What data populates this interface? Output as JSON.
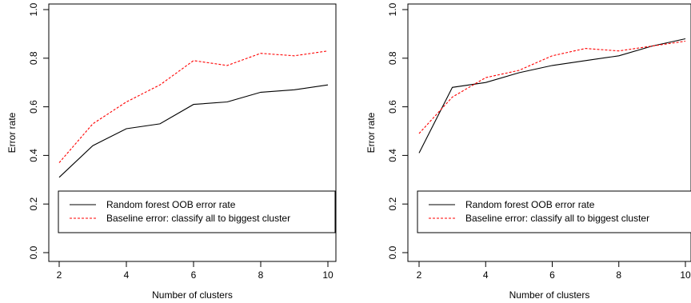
{
  "colors": {
    "oob_line": "#000000",
    "baseline_line": "#ff0000",
    "frame": "#000000",
    "background": "#ffffff"
  },
  "chart_data": [
    {
      "type": "line",
      "xlabel": "Number of clusters",
      "ylabel": "Error rate",
      "xlim": [
        2,
        10
      ],
      "ylim": [
        0,
        1
      ],
      "xticks": [
        "2",
        "4",
        "6",
        "8",
        "10"
      ],
      "yticks": [
        "0.0",
        "0.2",
        "0.4",
        "0.6",
        "0.8",
        "1.0"
      ],
      "x": [
        2,
        3,
        4,
        5,
        6,
        7,
        8,
        9,
        10
      ],
      "series": [
        {
          "name": "Random forest OOB error rate",
          "style": "solid",
          "color": "#000000",
          "values": [
            0.31,
            0.44,
            0.51,
            0.53,
            0.61,
            0.62,
            0.66,
            0.67,
            0.69
          ]
        },
        {
          "name": "Baseline error: classify all to biggest cluster",
          "style": "dashed",
          "color": "#ff0000",
          "values": [
            0.37,
            0.53,
            0.62,
            0.69,
            0.79,
            0.77,
            0.82,
            0.81,
            0.83
          ]
        }
      ],
      "legend": {
        "position": "bottom-right",
        "entries": [
          "Random forest OOB error rate",
          "Baseline error: classify all to biggest cluster"
        ]
      },
      "grid": false
    },
    {
      "type": "line",
      "xlabel": "Number of clusters",
      "ylabel": "Error rate",
      "xlim": [
        2,
        10
      ],
      "ylim": [
        0,
        1
      ],
      "xticks": [
        "2",
        "4",
        "6",
        "8",
        "10"
      ],
      "yticks": [
        "0.0",
        "0.2",
        "0.4",
        "0.6",
        "0.8",
        "1.0"
      ],
      "x": [
        2,
        3,
        4,
        5,
        6,
        7,
        8,
        9,
        10
      ],
      "series": [
        {
          "name": "Random forest OOB error rate",
          "style": "solid",
          "color": "#000000",
          "values": [
            0.41,
            0.68,
            0.7,
            0.74,
            0.77,
            0.79,
            0.81,
            0.85,
            0.88
          ]
        },
        {
          "name": "Baseline error: classify all to biggest cluster",
          "style": "dashed",
          "color": "#ff0000",
          "values": [
            0.49,
            0.64,
            0.72,
            0.75,
            0.81,
            0.84,
            0.83,
            0.85,
            0.87
          ]
        }
      ],
      "legend": {
        "position": "bottom-right",
        "entries": [
          "Random forest OOB error rate",
          "Baseline error: classify all to biggest cluster"
        ]
      },
      "grid": false
    }
  ]
}
